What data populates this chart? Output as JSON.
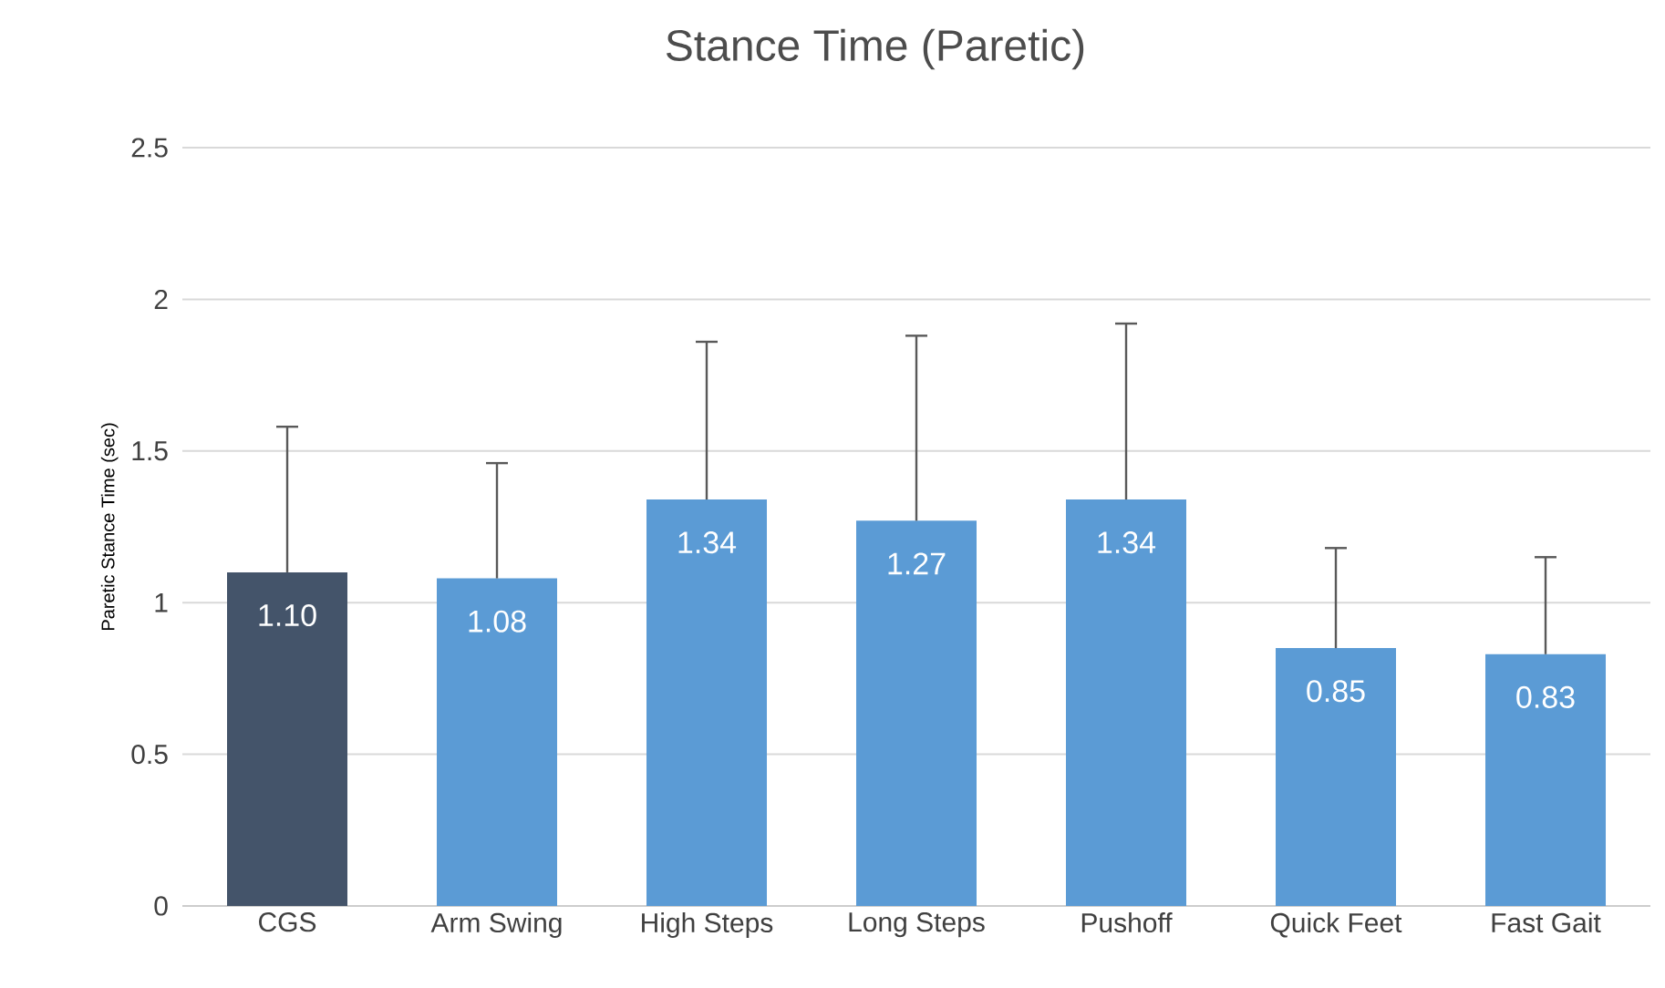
{
  "chart_data": {
    "type": "bar",
    "title": "Stance Time (Paretic)",
    "ylabel": "Paretic Stance Time (sec)",
    "categories": [
      "CGS",
      "Arm Swing",
      "High Steps",
      "Long Steps",
      "Pushoff",
      "Quick Feet",
      "Fast Gait"
    ],
    "values": [
      1.1,
      1.08,
      1.34,
      1.27,
      1.34,
      0.85,
      0.83
    ],
    "value_labels": [
      "1.10",
      "1.08",
      "1.34",
      "1.27",
      "1.34",
      "0.85",
      "0.83"
    ],
    "errors": [
      [
        1.1,
        1.58
      ],
      [
        1.08,
        1.46
      ],
      [
        1.34,
        1.86
      ],
      [
        1.27,
        1.88
      ],
      [
        1.34,
        1.92
      ],
      [
        0.85,
        1.18
      ],
      [
        0.83,
        1.15
      ]
    ],
    "colors": [
      "#44546a",
      "#5b9bd5",
      "#5b9bd5",
      "#5b9bd5",
      "#5b9bd5",
      "#5b9bd5",
      "#5b9bd5"
    ],
    "ylim": [
      0,
      2.5
    ],
    "yticks": [
      0,
      0.5,
      1,
      1.5,
      2,
      2.5
    ],
    "grid": "y"
  }
}
